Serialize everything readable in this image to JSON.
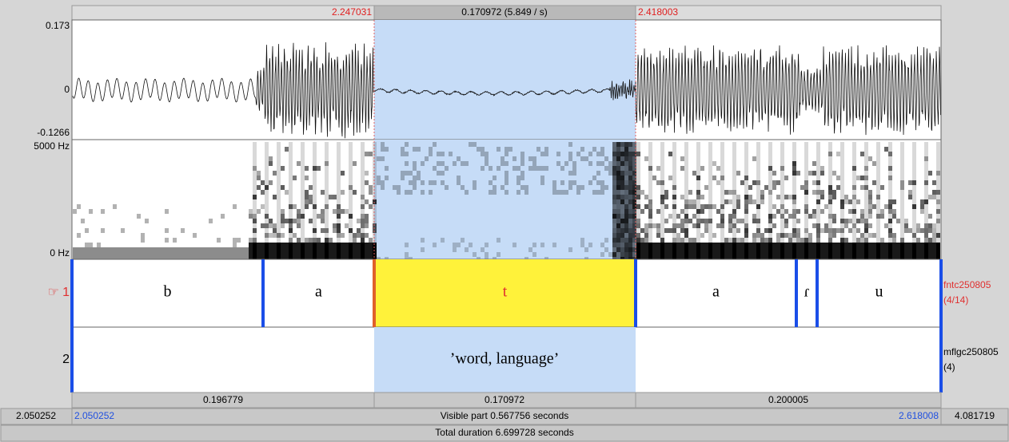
{
  "top_bar": {
    "selection_start": "2.247031",
    "selection_duration": "0.170972 (5.849 / s)",
    "selection_end": "2.418003"
  },
  "waveform": {
    "max_label": "0.173",
    "zero_label": "0",
    "min_label": "-0.1266"
  },
  "spectrogram": {
    "max_label": "5000 Hz",
    "min_label": "0 Hz"
  },
  "tiers": [
    {
      "marker": "☞",
      "number": "1",
      "name": "fntc250805",
      "count": "(4/14)",
      "intervals": [
        "b",
        "a",
        "t",
        "a",
        "ɾ",
        "u"
      ]
    },
    {
      "number": "2",
      "name": "mflgc250805",
      "count": "(4)",
      "intervals": [
        "’word, language’"
      ]
    }
  ],
  "bottom": {
    "durations": [
      "0.196779",
      "0.170972",
      "0.200005"
    ],
    "window_start": "2.050252",
    "visible_start": "2.050252",
    "visible_part": "Visible part 0.567756 seconds",
    "visible_end": "2.618008",
    "window_end": "4.081719",
    "total_duration": "Total duration 6.699728 seconds"
  }
}
